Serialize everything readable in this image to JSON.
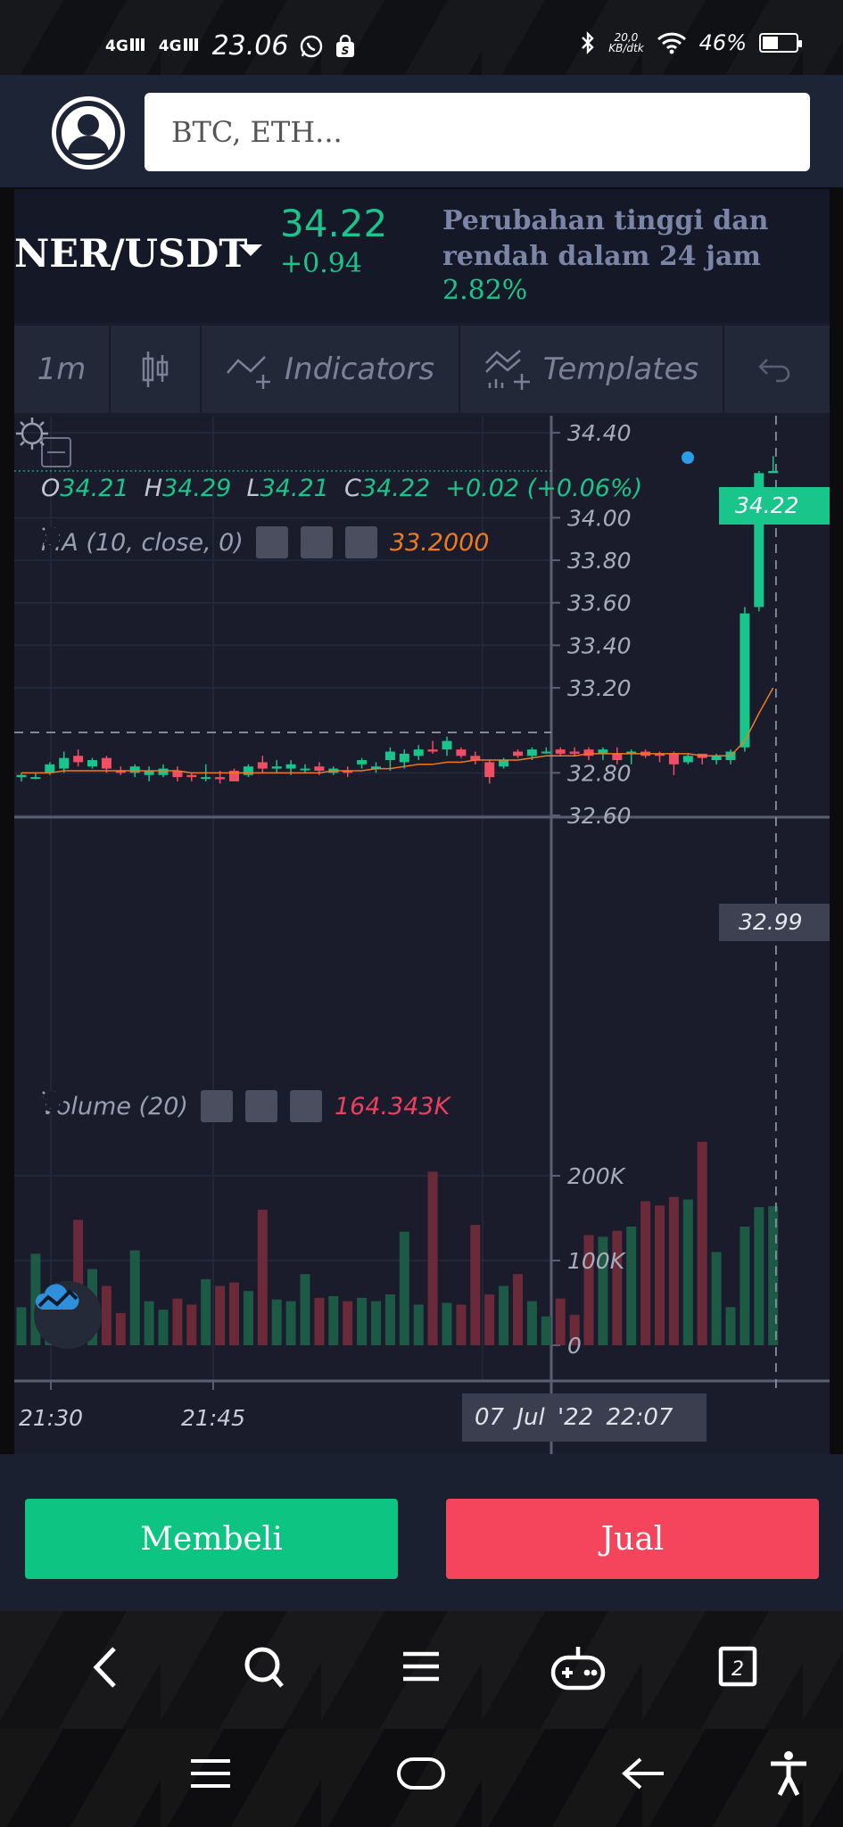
{
  "status_bar": {
    "network1": "4G",
    "network2": "4G",
    "time": "23.06",
    "speed_value": "20,0",
    "speed_unit": "KB/dtk",
    "battery": "46%",
    "battery_level": 0.46
  },
  "search": {
    "placeholder": "BTC, ETH..."
  },
  "symbol": {
    "pair": "NER/USDT",
    "price": "34.22",
    "change": "+0.94",
    "range_label": "Perubahan tinggi dan rendah dalam 24 jam",
    "range_value": "2.82%"
  },
  "toolbar": {
    "interval": "1m",
    "indicators": "Indicators",
    "templates": "Templates"
  },
  "legend": {
    "o_label": "O",
    "o": "34.21",
    "h_label": "H",
    "h": "34.29",
    "l_label": "L",
    "l": "34.21",
    "c_label": "C",
    "c": "34.22",
    "change": "+0.02 (+0.06%)",
    "ma_label": "MA (10, close, 0)",
    "ma_value": "33.2000",
    "volume_label": "Volume (20)",
    "volume_value": "164.343K"
  },
  "colors": {
    "up": "#19c58a",
    "down": "#ef4e64",
    "ma": "#ef7a22",
    "buy": "#0dc483",
    "sell": "#f5455c"
  },
  "chart_data": {
    "type": "candlestick",
    "price_axis": [
      "34.40",
      "34.00",
      "33.80",
      "33.60",
      "33.40",
      "33.20",
      "32.80",
      "32.60"
    ],
    "volume_axis": [
      "200K",
      "100K",
      "0"
    ],
    "time_axis": [
      "21:30",
      "21:45"
    ],
    "current_price": "34.22",
    "crosshair_price": "32.99",
    "crosshair_time": "07 Jul '22   22:07",
    "ylim": [
      32.6,
      34.48
    ],
    "volume_max": 250,
    "candles": [
      {
        "o": 32.78,
        "h": 32.8,
        "l": 32.76,
        "c": 32.79,
        "v": 45
      },
      {
        "o": 32.78,
        "h": 32.8,
        "l": 32.77,
        "c": 32.78,
        "v": 108
      },
      {
        "o": 32.8,
        "h": 32.85,
        "l": 32.79,
        "c": 32.84,
        "v": 48
      },
      {
        "o": 32.82,
        "h": 32.9,
        "l": 32.8,
        "c": 32.87,
        "v": 62
      },
      {
        "o": 32.88,
        "h": 32.91,
        "l": 32.83,
        "c": 32.85,
        "v": 148
      },
      {
        "o": 32.83,
        "h": 32.87,
        "l": 32.82,
        "c": 32.86,
        "v": 90
      },
      {
        "o": 32.87,
        "h": 32.88,
        "l": 32.8,
        "c": 32.82,
        "v": 70
      },
      {
        "o": 32.81,
        "h": 32.83,
        "l": 32.79,
        "c": 32.8,
        "v": 38
      },
      {
        "o": 32.8,
        "h": 32.84,
        "l": 32.78,
        "c": 32.83,
        "v": 112
      },
      {
        "o": 32.79,
        "h": 32.83,
        "l": 32.76,
        "c": 32.81,
        "v": 52
      },
      {
        "o": 32.79,
        "h": 32.84,
        "l": 32.78,
        "c": 32.82,
        "v": 42
      },
      {
        "o": 32.81,
        "h": 32.83,
        "l": 32.76,
        "c": 32.78,
        "v": 55
      },
      {
        "o": 32.79,
        "h": 32.8,
        "l": 32.76,
        "c": 32.78,
        "v": 48
      },
      {
        "o": 32.78,
        "h": 32.84,
        "l": 32.76,
        "c": 32.78,
        "v": 78
      },
      {
        "o": 32.78,
        "h": 32.81,
        "l": 32.75,
        "c": 32.77,
        "v": 70
      },
      {
        "o": 32.81,
        "h": 32.82,
        "l": 32.76,
        "c": 32.76,
        "v": 74
      },
      {
        "o": 32.79,
        "h": 32.84,
        "l": 32.78,
        "c": 32.83,
        "v": 64
      },
      {
        "o": 32.85,
        "h": 32.88,
        "l": 32.8,
        "c": 32.82,
        "v": 160
      },
      {
        "o": 32.82,
        "h": 32.86,
        "l": 32.8,
        "c": 32.83,
        "v": 54
      },
      {
        "o": 32.82,
        "h": 32.86,
        "l": 32.79,
        "c": 32.84,
        "v": 52
      },
      {
        "o": 32.82,
        "h": 32.84,
        "l": 32.8,
        "c": 32.82,
        "v": 84
      },
      {
        "o": 32.83,
        "h": 32.85,
        "l": 32.79,
        "c": 32.81,
        "v": 56
      },
      {
        "o": 32.8,
        "h": 32.83,
        "l": 32.79,
        "c": 32.82,
        "v": 58
      },
      {
        "o": 32.81,
        "h": 32.83,
        "l": 32.78,
        "c": 32.8,
        "v": 52
      },
      {
        "o": 32.84,
        "h": 32.87,
        "l": 32.82,
        "c": 32.86,
        "v": 56
      },
      {
        "o": 32.82,
        "h": 32.85,
        "l": 32.8,
        "c": 32.83,
        "v": 52
      },
      {
        "o": 32.86,
        "h": 32.92,
        "l": 32.81,
        "c": 32.9,
        "v": 60
      },
      {
        "o": 32.85,
        "h": 32.91,
        "l": 32.82,
        "c": 32.89,
        "v": 134
      },
      {
        "o": 32.88,
        "h": 32.93,
        "l": 32.86,
        "c": 32.91,
        "v": 48
      },
      {
        "o": 32.91,
        "h": 32.95,
        "l": 32.89,
        "c": 32.9,
        "v": 205
      },
      {
        "o": 32.91,
        "h": 32.97,
        "l": 32.88,
        "c": 32.95,
        "v": 50
      },
      {
        "o": 32.91,
        "h": 32.92,
        "l": 32.87,
        "c": 32.88,
        "v": 48
      },
      {
        "o": 32.88,
        "h": 32.9,
        "l": 32.84,
        "c": 32.86,
        "v": 142
      },
      {
        "o": 32.85,
        "h": 32.86,
        "l": 32.75,
        "c": 32.78,
        "v": 60
      },
      {
        "o": 32.83,
        "h": 32.87,
        "l": 32.82,
        "c": 32.86,
        "v": 70
      },
      {
        "o": 32.9,
        "h": 32.91,
        "l": 32.87,
        "c": 32.88,
        "v": 84
      },
      {
        "o": 32.88,
        "h": 32.92,
        "l": 32.86,
        "c": 32.91,
        "v": 52
      },
      {
        "o": 32.9,
        "h": 32.92,
        "l": 32.89,
        "c": 32.9,
        "v": 34
      },
      {
        "o": 32.91,
        "h": 32.92,
        "l": 32.88,
        "c": 32.89,
        "v": 55
      },
      {
        "o": 32.9,
        "h": 32.92,
        "l": 32.88,
        "c": 32.89,
        "v": 36
      },
      {
        "o": 32.91,
        "h": 32.92,
        "l": 32.86,
        "c": 32.88,
        "v": 130
      },
      {
        "o": 32.89,
        "h": 32.92,
        "l": 32.86,
        "c": 32.91,
        "v": 128
      },
      {
        "o": 32.89,
        "h": 32.92,
        "l": 32.84,
        "c": 32.86,
        "v": 135
      },
      {
        "o": 32.89,
        "h": 32.91,
        "l": 32.84,
        "c": 32.9,
        "v": 140
      },
      {
        "o": 32.9,
        "h": 32.91,
        "l": 32.87,
        "c": 32.88,
        "v": 170
      },
      {
        "o": 32.89,
        "h": 32.9,
        "l": 32.85,
        "c": 32.88,
        "v": 165
      },
      {
        "o": 32.89,
        "h": 32.9,
        "l": 32.79,
        "c": 32.84,
        "v": 175
      },
      {
        "o": 32.85,
        "h": 32.89,
        "l": 32.84,
        "c": 32.88,
        "v": 172
      },
      {
        "o": 32.89,
        "h": 32.89,
        "l": 32.84,
        "c": 32.87,
        "v": 240
      },
      {
        "o": 32.86,
        "h": 32.89,
        "l": 32.84,
        "c": 32.88,
        "v": 110
      },
      {
        "o": 32.86,
        "h": 32.91,
        "l": 32.84,
        "c": 32.9,
        "v": 45
      },
      {
        "o": 32.92,
        "h": 33.58,
        "l": 32.9,
        "c": 33.55,
        "v": 140
      },
      {
        "o": 33.58,
        "h": 34.22,
        "l": 33.56,
        "c": 34.21,
        "v": 163
      },
      {
        "o": 34.21,
        "h": 34.29,
        "l": 34.21,
        "c": 34.22,
        "v": 164
      }
    ],
    "ma": [
      32.8,
      32.8,
      32.8,
      32.81,
      32.81,
      32.81,
      32.81,
      32.81,
      32.81,
      32.81,
      32.81,
      32.81,
      32.8,
      32.8,
      32.8,
      32.8,
      32.8,
      32.8,
      32.8,
      32.8,
      32.8,
      32.8,
      32.81,
      32.81,
      32.81,
      32.82,
      32.82,
      32.83,
      32.84,
      32.84,
      32.85,
      32.85,
      32.86,
      32.86,
      32.86,
      32.86,
      32.87,
      32.88,
      32.88,
      32.88,
      32.89,
      32.89,
      32.89,
      32.89,
      32.89,
      32.89,
      32.89,
      32.89,
      32.88,
      32.88,
      32.88,
      32.95,
      33.08,
      33.2
    ]
  },
  "actions": {
    "buy": "Membeli",
    "sell": "Jual"
  }
}
